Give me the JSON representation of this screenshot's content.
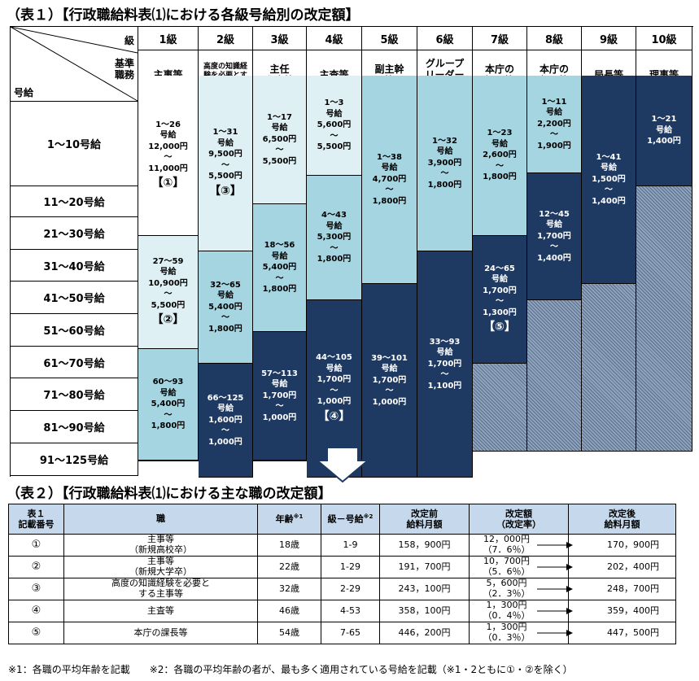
{
  "table1": {
    "title": "（表１）【行政職給料表⑴における各級号給別の改定額】",
    "header": {
      "kyu": "級",
      "kijun": "基準\n職務",
      "gokyu": "号給"
    },
    "grades": [
      "1級",
      "2級",
      "3級",
      "4級",
      "5級",
      "6級",
      "7級",
      "8級",
      "9級",
      "10級"
    ],
    "duties": [
      "主事等",
      "高度の知識経験を必要とする主事等",
      "主任\n主事等",
      "主査等",
      "副主幹\n等",
      "グループ\nリーダー\n等",
      "本庁の\n課長等",
      "本庁の\n部長等",
      "局長等",
      "理事等"
    ],
    "rows": [
      "1～10号給",
      "11～20号給",
      "21～30号給",
      "31～40号給",
      "41～50号給",
      "51～60号給",
      "61～70号給",
      "71～80号給",
      "81～90号給",
      "91～125号給"
    ],
    "blocks": [
      {
        "text": "1～26\n号給\n12,000円\n～\n11,000円",
        "mark": "【①】"
      },
      {
        "text": "27～59\n号給\n10,900円\n～\n5,500円",
        "mark": "【②】"
      },
      {
        "text": "60～93\n号給\n5,400円\n～\n1,800円",
        "mark": ""
      },
      {
        "text": "1～31\n号給\n9,500円\n～\n5,500円",
        "mark": "【③】"
      },
      {
        "text": "32～65\n号給\n5,400円\n～\n1,800円",
        "mark": ""
      },
      {
        "text": "66～125\n号給\n1,600円\n～\n1,000円",
        "mark": ""
      },
      {
        "text": "1～17\n号給\n6,500円\n～\n5,500円",
        "mark": ""
      },
      {
        "text": "18～56\n号給\n5,400円\n～\n1,800円",
        "mark": ""
      },
      {
        "text": "57～113\n号給\n1,700円\n～\n1,000円",
        "mark": ""
      },
      {
        "text": "1～3\n号給\n5,600円\n～\n5,500円",
        "mark": ""
      },
      {
        "text": "4～43\n号給\n5,300円\n～\n1,800円",
        "mark": ""
      },
      {
        "text": "44～105\n号給\n1,700円\n～\n1,000円",
        "mark": "【④】"
      },
      {
        "text": "1～38\n号給\n4,700円\n～\n1,800円",
        "mark": ""
      },
      {
        "text": "39～101\n号給\n1,700円\n～\n1,000円",
        "mark": ""
      },
      {
        "text": "1～32\n号給\n3,900円\n～\n1,800円",
        "mark": ""
      },
      {
        "text": "33～93\n号給\n1,700円\n～\n1,100円",
        "mark": ""
      },
      {
        "text": "1～23\n号給\n2,600円\n～\n1,800円",
        "mark": ""
      },
      {
        "text": "24～65\n号給\n1,700円\n～\n1,300円",
        "mark": "【⑤】"
      },
      {
        "text": "1～11\n号給\n2,200円\n～\n1,900円",
        "mark": ""
      },
      {
        "text": "12～45\n号給\n1,700円\n～\n1,400円",
        "mark": ""
      },
      {
        "text": "1～41\n号給\n1,500円\n～\n1,400円",
        "mark": ""
      },
      {
        "text": "1～21\n号給\n1,400円",
        "mark": ""
      }
    ]
  },
  "table2": {
    "title": "（表２）【行政職給料表⑴における主な職の改定額】",
    "headers": {
      "no": "表１\n記載番号",
      "job": "職",
      "age": "年齢",
      "age_sup": "※1",
      "grade": "級－号給",
      "grade_sup": "※2",
      "before": "改定前\n給料月額",
      "amount": "改定額\n（改定率）",
      "after": "改定後\n給料月額"
    },
    "rows": [
      {
        "no": "①",
        "job": "主事等\n（新規高校卒）",
        "age": "18歳",
        "grade": "1-9",
        "before": "158，900円",
        "amount": "12，000円\n（7．6％）",
        "after": "170，900円"
      },
      {
        "no": "②",
        "job": "主事等\n（新規大学卒）",
        "age": "22歳",
        "grade": "1-29",
        "before": "191，700円",
        "amount": "10，700円\n（5．6％）",
        "after": "202，400円"
      },
      {
        "no": "③",
        "job": "高度の知識経験を必要と\nする主事等",
        "age": "32歳",
        "grade": "2-29",
        "before": "243，100円",
        "amount": "5，600円\n（2．3％）",
        "after": "248，700円"
      },
      {
        "no": "④",
        "job": "主査等",
        "age": "46歳",
        "grade": "4-53",
        "before": "358，100円",
        "amount": "1，300円\n（0．4％）",
        "after": "359，400円"
      },
      {
        "no": "⑤",
        "job": "本庁の課長等",
        "age": "54歳",
        "grade": "7-65",
        "before": "446，200円",
        "amount": "1，300円\n（0．3％）",
        "after": "447，500円"
      }
    ]
  },
  "footnote": "※1：各職の平均年齢を記載　　※2：各職の平均年齢の者が、最も多く適用されている号給を記載（※1・2ともに①・②を除く）",
  "colors": {
    "white": "#ffffff",
    "light": "#dff0f5",
    "mid": "#a6d5e2",
    "dark": "#1e3a63",
    "header": "#c6d9ec"
  }
}
